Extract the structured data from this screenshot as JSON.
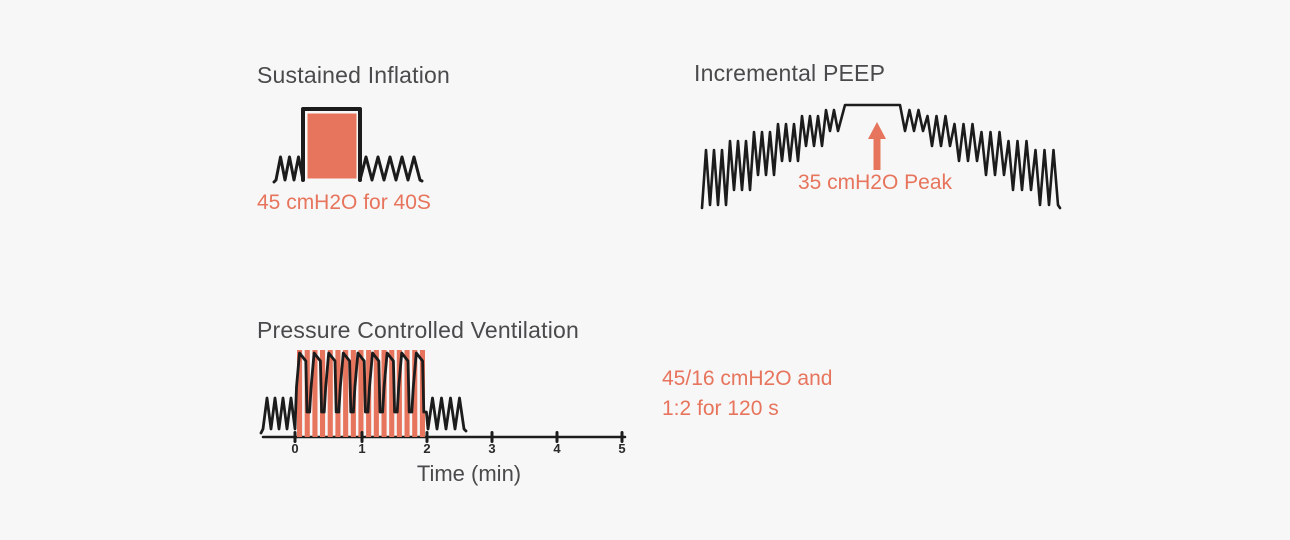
{
  "figure": {
    "background_color": "#f7f7f7",
    "accent_color": "#e7745c",
    "title_color": "#4a4a4c",
    "waveform_color": "#1c1c1c"
  },
  "panels": {
    "sustained_inflation": {
      "title": "Sustained Inflation",
      "caption": "45 cmH2O for 40S"
    },
    "incremental_peep": {
      "title": "Incremental PEEP",
      "annotation": "35 cmH2O Peak"
    },
    "pressure_controlled_ventilation": {
      "title": "Pressure Controlled Ventilation",
      "caption_line1": "45/16 cmH2O and",
      "caption_line2": "1:2 for 120 s",
      "axis": {
        "label": "Time (min)",
        "ticks": [
          "0",
          "1",
          "2",
          "3",
          "4",
          "5"
        ]
      }
    }
  }
}
